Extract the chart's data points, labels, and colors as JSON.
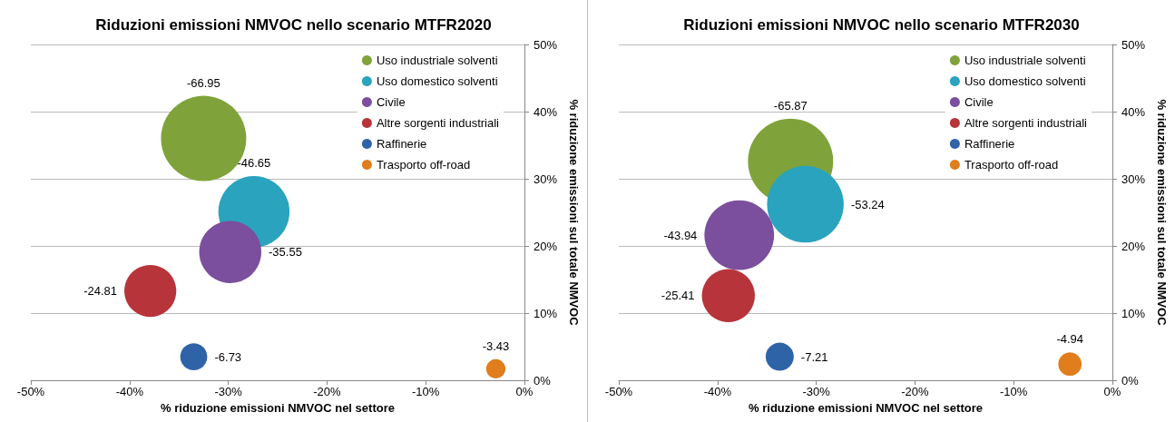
{
  "chart_data": [
    {
      "type": "bubble",
      "title": "Riduzioni emissioni NMVOC nello scenario MTFR2020",
      "xlabel": "% riduzione emissioni NMVOC nel settore",
      "ylabel": "% riduzione emissioni sul totale NMVOC",
      "xlim": [
        -50,
        0
      ],
      "xticks": [
        {
          "value": -50,
          "label": "-50%"
        },
        {
          "value": -40,
          "label": "-40%"
        },
        {
          "value": -30,
          "label": "-30%"
        },
        {
          "value": -20,
          "label": "-20%"
        },
        {
          "value": -10,
          "label": "-10%"
        },
        {
          "value": 0,
          "label": "0%"
        }
      ],
      "ylim": [
        0,
        50
      ],
      "yticks": [
        {
          "value": 0,
          "label": "0%"
        },
        {
          "value": 10,
          "label": "10%"
        },
        {
          "value": 20,
          "label": "20%"
        },
        {
          "value": 30,
          "label": "30%"
        },
        {
          "value": 40,
          "label": "40%"
        },
        {
          "value": 50,
          "label": "50%"
        }
      ],
      "grid": "y",
      "legend": "top right",
      "annotations": [
        "-66.95",
        "-46.65",
        "-35.55",
        "-24.81",
        "-6.73",
        "-3.43"
      ],
      "series": [
        {
          "name": "Uso industriale solventi",
          "color": "#7fa33a",
          "x": [
            -32.5
          ],
          "values": [
            36.0
          ],
          "sizes": [
            1
          ]
        },
        {
          "name": "Uso domestico solventi",
          "color": "#2aa3bf",
          "x": [
            -27.4
          ],
          "values": [
            25.1
          ],
          "sizes": [
            0.697
          ]
        },
        {
          "name": "Civile",
          "color": "#7b4f9d",
          "x": [
            -29.8
          ],
          "values": [
            19.1
          ],
          "sizes": [
            0.531
          ]
        },
        {
          "name": "Altre sorgenti industriali",
          "color": "#b7353a",
          "x": [
            -37.9
          ],
          "values": [
            13.3
          ],
          "sizes": [
            0.371
          ]
        },
        {
          "name": "Raffinerie",
          "color": "#2e63a8",
          "x": [
            -33.5
          ],
          "values": [
            3.5
          ],
          "sizes": [
            0.101
          ]
        },
        {
          "name": "Trasporto off-road",
          "color": "#e07d1c",
          "x": [
            -2.9
          ],
          "values": [
            1.7
          ],
          "sizes": [
            0.051
          ]
        }
      ]
    },
    {
      "type": "bubble",
      "title": "Riduzioni emissioni NMVOC nello scenario MTFR2030",
      "xlabel": "% riduzione emissioni NMVOC nel settore",
      "ylabel": "% riduzione emissioni sul totale NMVOC",
      "xlim": [
        -50,
        0
      ],
      "xticks": [
        {
          "value": -50,
          "label": "-50%"
        },
        {
          "value": -40,
          "label": "-40%"
        },
        {
          "value": -30,
          "label": "-30%"
        },
        {
          "value": -20,
          "label": "-20%"
        },
        {
          "value": -10,
          "label": "-10%"
        },
        {
          "value": 0,
          "label": "0%"
        }
      ],
      "ylim": [
        0,
        50
      ],
      "yticks": [
        {
          "value": 0,
          "label": "0%"
        },
        {
          "value": 10,
          "label": "10%"
        },
        {
          "value": 20,
          "label": "20%"
        },
        {
          "value": 30,
          "label": "30%"
        },
        {
          "value": 40,
          "label": "40%"
        },
        {
          "value": 50,
          "label": "50%"
        }
      ],
      "grid": "y",
      "legend": "top right",
      "annotations": [
        "-65.87",
        "-53.24",
        "-43.94",
        "-25.41",
        "-7.21",
        "-4.94"
      ],
      "series": [
        {
          "name": "Uso industriale solventi",
          "color": "#7fa33a",
          "x": [
            -32.6
          ],
          "values": [
            32.6
          ],
          "sizes": [
            1
          ]
        },
        {
          "name": "Uso domestico solventi",
          "color": "#2aa3bf",
          "x": [
            -31.1
          ],
          "values": [
            26.2
          ],
          "sizes": [
            0.808
          ]
        },
        {
          "name": "Civile",
          "color": "#7b4f9d",
          "x": [
            -37.8
          ],
          "values": [
            21.6
          ],
          "sizes": [
            0.667
          ]
        },
        {
          "name": "Altre sorgenti industriali",
          "color": "#b7353a",
          "x": [
            -38.9
          ],
          "values": [
            12.6
          ],
          "sizes": [
            0.386
          ]
        },
        {
          "name": "Raffinerie",
          "color": "#2e63a8",
          "x": [
            -33.7
          ],
          "values": [
            3.5
          ],
          "sizes": [
            0.109
          ]
        },
        {
          "name": "Trasporto off-road",
          "color": "#e07d1c",
          "x": [
            -4.3
          ],
          "values": [
            2.4
          ],
          "sizes": [
            0.075
          ]
        }
      ]
    }
  ]
}
